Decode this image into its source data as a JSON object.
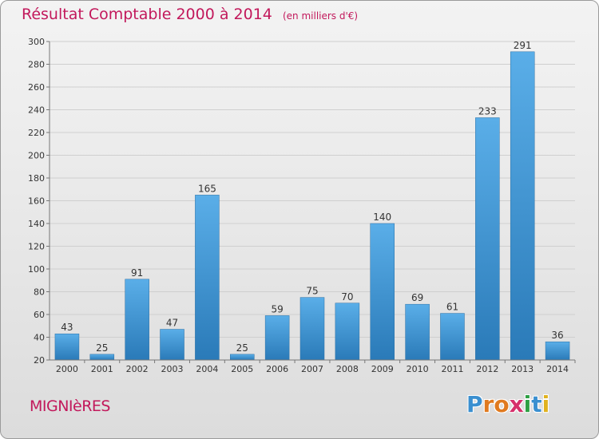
{
  "chart_data": {
    "type": "bar",
    "title": "Résultat Comptable 2000 à 2014",
    "unit": "(en milliers d'€)",
    "categories": [
      "2000",
      "2001",
      "2002",
      "2003",
      "2004",
      "2005",
      "2006",
      "2007",
      "2008",
      "2009",
      "2010",
      "2011",
      "2012",
      "2013",
      "2014"
    ],
    "values": [
      43,
      25,
      91,
      47,
      165,
      25,
      59,
      75,
      70,
      140,
      69,
      61,
      233,
      291,
      36
    ],
    "ylim": [
      20,
      300
    ],
    "yticks": [
      20,
      40,
      60,
      80,
      100,
      120,
      140,
      160,
      180,
      200,
      220,
      240,
      260,
      280,
      300
    ],
    "grid": true,
    "xlabel": "",
    "ylabel": ""
  },
  "commune": "MIGNIèRES",
  "logo": {
    "letters": [
      {
        "ch": "P",
        "color": "#3a8fd0"
      },
      {
        "ch": "r",
        "color": "#e07a1f"
      },
      {
        "ch": "o",
        "color": "#e07a1f"
      },
      {
        "ch": "x",
        "color": "#d62f6b"
      },
      {
        "ch": "i",
        "color": "#2e9f43"
      },
      {
        "ch": "t",
        "color": "#3a8fd0"
      },
      {
        "ch": "i",
        "color": "#e0b21f"
      }
    ]
  },
  "colors": {
    "bar_light": "#5aaee8",
    "bar_dark": "#2a7ab8",
    "accent": "#c2185b"
  }
}
